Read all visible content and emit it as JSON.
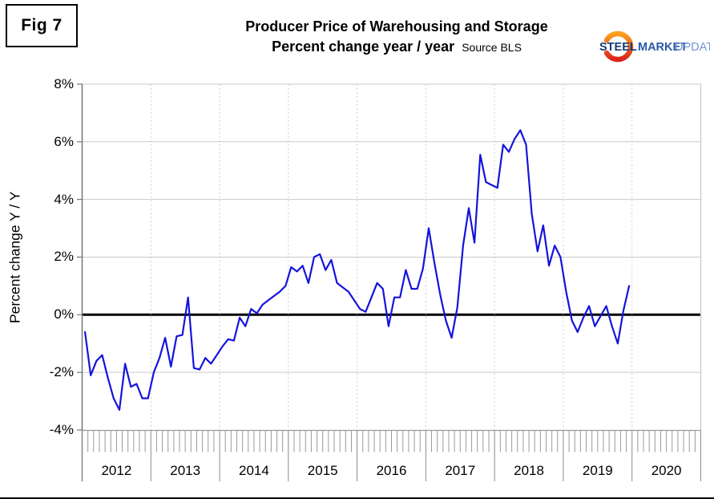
{
  "figure": {
    "label": "Fig 7"
  },
  "logo": {
    "steel": "STEEL",
    "market": "MARKET",
    "update": "UPDATE",
    "crescent_orange": "#f9a11e",
    "crescent_red": "#da251d",
    "steel_color": "#163a75",
    "market_color": "#2a5aa8",
    "update_color": "#7296cc"
  },
  "chart_data": {
    "type": "line",
    "title": "Producer Price of Warehousing and Storage",
    "subtitle": "Percent change year / year",
    "source": "Source BLS",
    "ylabel": "Percent change Y / Y",
    "ylim": [
      -4,
      8
    ],
    "grid": true,
    "legend": "none",
    "line_color": "#1414dc",
    "y_ticks": [
      {
        "label": "8%",
        "value": 8
      },
      {
        "label": "6%",
        "value": 6
      },
      {
        "label": "4%",
        "value": 4
      },
      {
        "label": "2%",
        "value": 2
      },
      {
        "label": "0%",
        "value": 0
      },
      {
        "label": "-2%",
        "value": -2
      },
      {
        "label": "-4%",
        "value": -4
      }
    ],
    "x_years": [
      "2012",
      "2013",
      "2014",
      "2015",
      "2016",
      "2017",
      "2018",
      "2019",
      "2020"
    ],
    "series": [
      {
        "name": "Warehousing and storage PPI, percent change year / year",
        "frequency": "monthly",
        "values_by_year": {
          "2012": [
            -0.6,
            -2.1,
            -1.6,
            -1.4,
            -2.2,
            -2.9,
            -3.3,
            -1.7,
            -2.5,
            -2.4,
            -2.9,
            -2.9
          ],
          "2013": [
            -2.0,
            -1.5,
            -0.8,
            -1.8,
            -0.75,
            -0.7,
            0.6,
            -1.85,
            -1.9,
            -1.5,
            -1.7,
            -1.4
          ],
          "2014": [
            -1.1,
            -0.85,
            -0.9,
            -0.1,
            -0.4,
            0.2,
            0.05,
            0.35,
            0.5,
            0.65,
            0.8,
            1.0
          ],
          "2015": [
            1.65,
            1.5,
            1.7,
            1.1,
            2.0,
            2.1,
            1.55,
            1.9,
            1.1,
            0.95,
            0.8,
            0.5
          ],
          "2016": [
            0.2,
            0.1,
            0.6,
            1.1,
            0.9,
            -0.4,
            0.6,
            0.6,
            1.55,
            0.9,
            0.9,
            1.6
          ],
          "2017": [
            3.0,
            1.8,
            0.7,
            -0.2,
            -0.8,
            0.25,
            2.4,
            3.7,
            2.5,
            5.55,
            4.6,
            4.5
          ],
          "2018": [
            4.4,
            5.9,
            5.65,
            6.1,
            6.4,
            5.9,
            3.5,
            2.2,
            3.1,
            1.7,
            2.4,
            2.0
          ],
          "2019": [
            0.8,
            -0.2,
            -0.6,
            -0.1,
            0.3,
            -0.4,
            -0.05,
            0.3,
            -0.4,
            -1.0,
            0.15,
            1.0
          ]
        }
      }
    ]
  }
}
